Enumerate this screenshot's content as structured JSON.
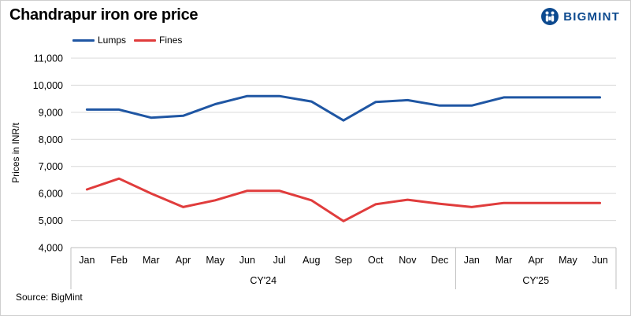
{
  "header": {
    "title": "Chandrapur iron ore price",
    "brand": "BIGMINT"
  },
  "footer": {
    "source": "Source: BigMint"
  },
  "chart_data": {
    "type": "line",
    "title": "Chandrapur iron ore price",
    "xlabel": "",
    "ylabel": "Prices in INR/t",
    "ylim": [
      4000,
      11000
    ],
    "yticks": [
      4000,
      5000,
      6000,
      7000,
      8000,
      9000,
      10000,
      11000
    ],
    "ytick_labels": [
      "4,000",
      "5,000",
      "6,000",
      "7,000",
      "8,000",
      "9,000",
      "10,000",
      "11,000"
    ],
    "grid": "horizontal",
    "legend_position": "top-left",
    "categories": [
      "Jan",
      "Feb",
      "Mar",
      "Apr",
      "May",
      "Jun",
      "Jul",
      "Aug",
      "Sep",
      "Oct",
      "Nov",
      "Dec",
      "Jan",
      "Mar",
      "Apr",
      "May",
      "Jun"
    ],
    "groups": [
      {
        "label": "CY'24",
        "count": 12
      },
      {
        "label": "CY'25",
        "count": 5
      }
    ],
    "series": [
      {
        "name": "Lumps",
        "color": "#1f56a3",
        "values": [
          9100,
          9100,
          8800,
          8870,
          9300,
          9600,
          9600,
          9400,
          8700,
          9380,
          9450,
          9250,
          9250,
          9550,
          9550,
          9550,
          9550
        ]
      },
      {
        "name": "Fines",
        "color": "#e03c3c",
        "values": [
          6150,
          6550,
          6000,
          5500,
          5750,
          6100,
          6100,
          5750,
          4980,
          5600,
          5770,
          5620,
          5500,
          5650,
          5650,
          5650,
          5650
        ]
      }
    ]
  }
}
